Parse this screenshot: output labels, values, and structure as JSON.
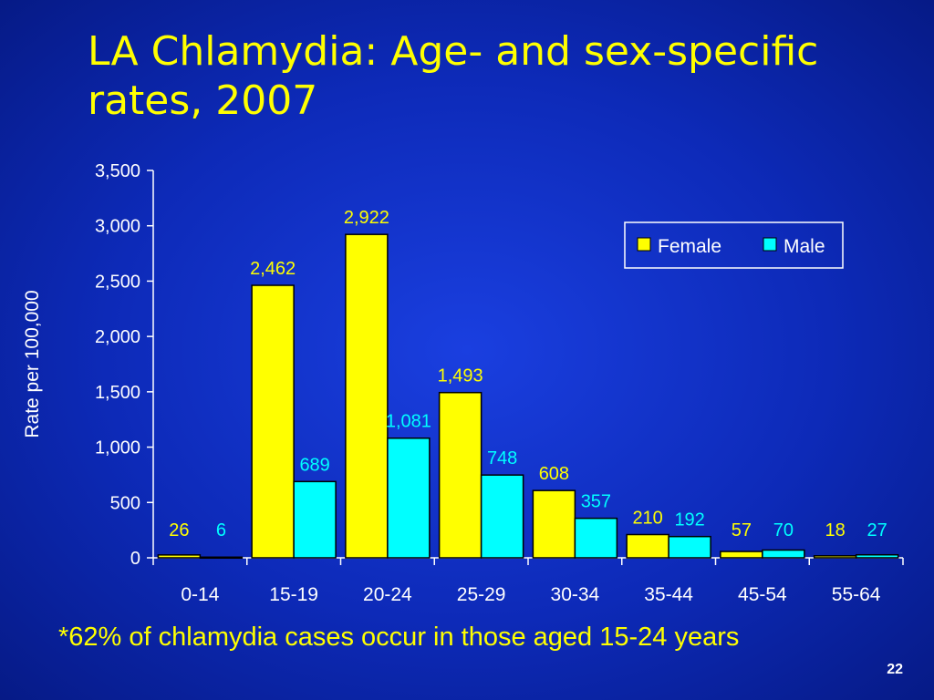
{
  "slide": {
    "title_line1": "LA Chlamydia: Age- and sex-specific",
    "title_line2": "rates, 2007",
    "footnote": "*62% of chlamydia cases occur in those aged 15-24 years",
    "page_number": "22"
  },
  "colors": {
    "female": "#ffff00",
    "male": "#00ffff",
    "text": "#ffffff",
    "background": "#0d2ab8"
  },
  "chart_data": {
    "type": "bar",
    "title": "",
    "xlabel": "",
    "ylabel": "Rate per 100,000",
    "ylim": [
      0,
      3500
    ],
    "yticks": [
      0,
      500,
      1000,
      1500,
      2000,
      2500,
      3000,
      3500
    ],
    "ytick_labels": [
      "0",
      "500",
      "1,000",
      "1,500",
      "2,000",
      "2,500",
      "3,000",
      "3,500"
    ],
    "categories": [
      "0-14",
      "15-19",
      "20-24",
      "25-29",
      "30-34",
      "35-44",
      "45-54",
      "55-64"
    ],
    "series": [
      {
        "name": "Female",
        "values": [
          26,
          2462,
          2922,
          1493,
          608,
          210,
          57,
          18
        ],
        "labels": [
          "26",
          "2,462",
          "2,922",
          "1,493",
          "608",
          "210",
          "57",
          "18"
        ]
      },
      {
        "name": "Male",
        "values": [
          6,
          689,
          1081,
          748,
          357,
          192,
          70,
          27
        ],
        "labels": [
          "6",
          "689",
          "1,081",
          "748",
          "357",
          "192",
          "70",
          "27"
        ]
      }
    ],
    "grid": false,
    "legend": "top-right"
  }
}
